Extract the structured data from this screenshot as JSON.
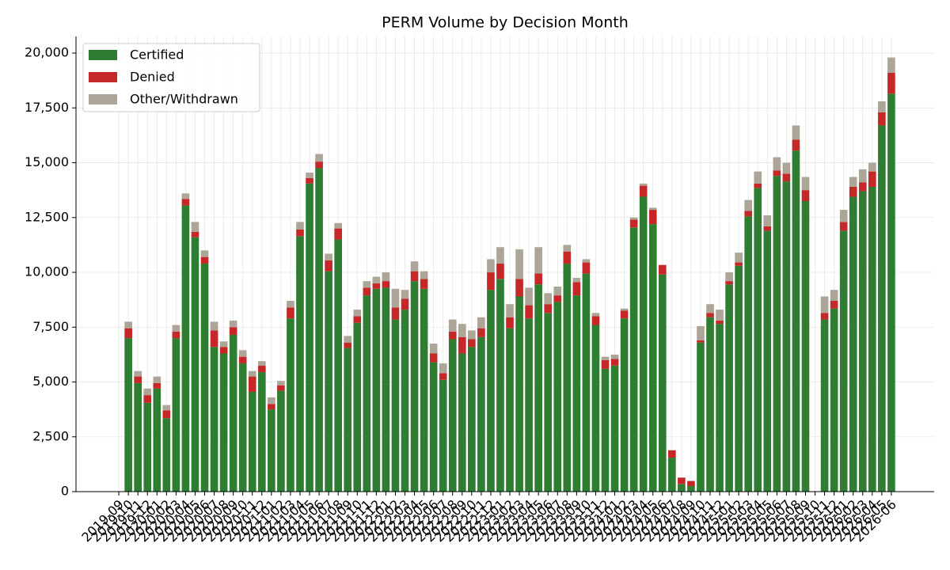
{
  "chart_data": {
    "type": "stacked_bar",
    "title": "PERM Volume by Decision Month",
    "categories": [
      "2019-09",
      "2019-10",
      "2019-11",
      "2019-12",
      "2020-01",
      "2020-02",
      "2020-03",
      "2020-04",
      "2020-05",
      "2020-06",
      "2020-07",
      "2020-08",
      "2020-09",
      "2020-10",
      "2020-11",
      "2020-12",
      "2021-01",
      "2021-02",
      "2021-03",
      "2021-04",
      "2021-05",
      "2021-06",
      "2021-07",
      "2021-08",
      "2021-09",
      "2021-10",
      "2021-11",
      "2021-12",
      "2022-01",
      "2022-02",
      "2022-03",
      "2022-04",
      "2022-05",
      "2022-06",
      "2022-07",
      "2022-08",
      "2022-09",
      "2022-10",
      "2022-11",
      "2022-12",
      "2023-01",
      "2023-02",
      "2023-03",
      "2023-04",
      "2023-05",
      "2023-06",
      "2023-07",
      "2023-08",
      "2023-09",
      "2023-10",
      "2023-11",
      "2023-12",
      "2024-01",
      "2024-02",
      "2024-03",
      "2024-04",
      "2024-05",
      "2024-06",
      "2024-07",
      "2024-08",
      "2024-09",
      "2024-10",
      "2024-11",
      "2024-12",
      "2025-01",
      "2025-02",
      "2025-03",
      "2025-04",
      "2025-05",
      "2025-06",
      "2025-07",
      "2025-08",
      "2025-09",
      "2025-10",
      "2025-11",
      "2025-12",
      "2026-01",
      "2026-02",
      "2026-03",
      "2026-04",
      "2026-05",
      "2026-06"
    ],
    "series": [
      {
        "name": "Certified",
        "color": "#2e7d32",
        "values": [
          null,
          7000,
          4950,
          4050,
          4700,
          3350,
          7000,
          13050,
          11600,
          10400,
          6600,
          6300,
          7150,
          5850,
          4550,
          5450,
          3750,
          4600,
          7900,
          11650,
          14050,
          14750,
          10050,
          11500,
          6550,
          7700,
          8950,
          9250,
          9300,
          7850,
          8300,
          9600,
          9250,
          5900,
          5100,
          6950,
          6300,
          6600,
          7050,
          9200,
          9700,
          7450,
          8900,
          7900,
          9450,
          8150,
          8650,
          10400,
          8950,
          9950,
          7600,
          5600,
          5750,
          7900,
          12050,
          13450,
          12200,
          9900,
          1550,
          350,
          250,
          6800,
          7950,
          7650,
          9450,
          10300,
          12550,
          13850,
          11900,
          14400,
          14150,
          15550,
          13250,
          null,
          7850,
          8350,
          11900,
          13450,
          13700,
          13900,
          16700,
          18150
        ]
      },
      {
        "name": "Denied",
        "color": "#c62828",
        "values": [
          null,
          450,
          300,
          350,
          250,
          350,
          300,
          300,
          250,
          300,
          750,
          300,
          350,
          300,
          700,
          300,
          250,
          250,
          500,
          300,
          250,
          300,
          500,
          500,
          250,
          300,
          350,
          250,
          300,
          550,
          500,
          450,
          450,
          400,
          300,
          350,
          750,
          350,
          400,
          800,
          700,
          500,
          800,
          600,
          500,
          400,
          300,
          550,
          600,
          500,
          400,
          400,
          300,
          350,
          350,
          500,
          650,
          430,
          330,
          280,
          230,
          100,
          200,
          150,
          150,
          150,
          250,
          200,
          200,
          250,
          350,
          500,
          500,
          null,
          300,
          350,
          400,
          450,
          400,
          700,
          600,
          950
        ]
      },
      {
        "name": "Other/Withdrawn",
        "color": "#ada597",
        "values": [
          null,
          300,
          250,
          300,
          300,
          250,
          300,
          250,
          450,
          300,
          400,
          250,
          300,
          300,
          250,
          200,
          300,
          200,
          300,
          350,
          250,
          350,
          300,
          250,
          300,
          300,
          300,
          300,
          400,
          850,
          400,
          450,
          350,
          450,
          450,
          550,
          600,
          400,
          500,
          600,
          750,
          600,
          1350,
          800,
          1200,
          500,
          400,
          300,
          200,
          150,
          150,
          150,
          200,
          100,
          100,
          100,
          100,
          20,
          20,
          20,
          20,
          650,
          400,
          500,
          400,
          450,
          500,
          550,
          500,
          600,
          500,
          650,
          600,
          null,
          750,
          500,
          550,
          450,
          600,
          400,
          500,
          700
        ]
      }
    ],
    "ylim": [
      0,
      20760
    ],
    "yticks": [
      0,
      {
        "value": 2500,
        "label": "2,500"
      },
      {
        "value": 5000,
        "label": "5,000"
      },
      {
        "value": 7500,
        "label": "7,500"
      },
      {
        "value": 10000,
        "label": "10,000"
      },
      {
        "value": 12500,
        "label": "12,500"
      },
      {
        "value": 15000,
        "label": "15,000"
      },
      {
        "value": 17500,
        "label": "17,500"
      },
      {
        "value": 20000,
        "label": "20,000"
      }
    ],
    "grid": true,
    "legend": "upper left"
  }
}
